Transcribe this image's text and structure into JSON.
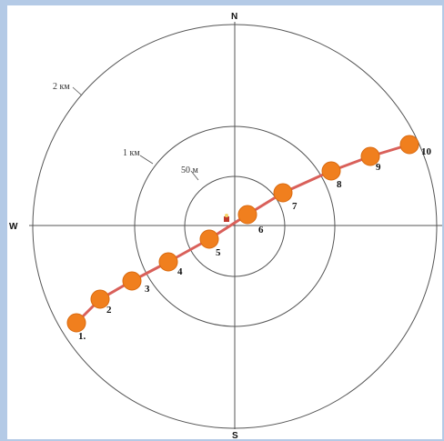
{
  "compass": {
    "north": "N",
    "south": "S",
    "west": "W"
  },
  "rings": [
    {
      "label": "50 м"
    },
    {
      "label": "1 км"
    },
    {
      "label": "2 км"
    }
  ],
  "points": [
    {
      "label": "1."
    },
    {
      "label": "2"
    },
    {
      "label": "3"
    },
    {
      "label": "4"
    },
    {
      "label": "5"
    },
    {
      "label": "6"
    },
    {
      "label": "7"
    },
    {
      "label": "8"
    },
    {
      "label": "9"
    },
    {
      "label": "10"
    }
  ],
  "colors": {
    "path_line": "#d9605a",
    "point_fill": "#f07f1e",
    "point_stroke": "#d96a10",
    "center_marker": "#c0392b",
    "ring_stroke": "#555555",
    "frame": "#b4cae6"
  }
}
